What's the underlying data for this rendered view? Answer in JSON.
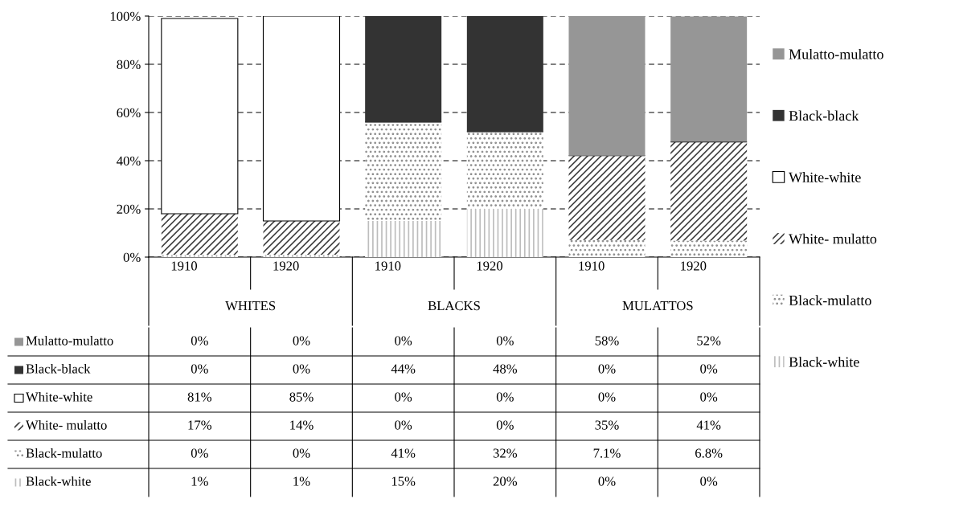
{
  "chart_data": {
    "type": "bar",
    "stacked": true,
    "categories": [
      "1910",
      "1920",
      "1910",
      "1920",
      "1910",
      "1920"
    ],
    "annotations": [
      "WHITES",
      "BLACKS",
      "MULATTOS"
    ],
    "series": [
      {
        "name": "Black-white",
        "color": "#bdbdbd",
        "values": [
          1,
          1,
          15,
          20,
          0,
          0
        ],
        "value_labels": [
          "1%",
          "1%",
          "15%",
          "20%",
          "0%",
          "0%"
        ]
      },
      {
        "name": "Black-mulatto",
        "color": "#8c8c8c",
        "values": [
          0,
          0,
          41,
          32,
          7.1,
          6.8
        ],
        "value_labels": [
          "0%",
          "0%",
          "41%",
          "32%",
          "7.1%",
          "6.8%"
        ]
      },
      {
        "name": "White- mulatto",
        "color": "#404040",
        "values": [
          17,
          14,
          0,
          0,
          35,
          41
        ],
        "value_labels": [
          "17%",
          "14%",
          "0%",
          "0%",
          "35%",
          "41%"
        ]
      },
      {
        "name": "White-white",
        "color": "#ffffff",
        "values": [
          81,
          85,
          0,
          0,
          0,
          0
        ],
        "value_labels": [
          "81%",
          "85%",
          "0%",
          "0%",
          "0%",
          "0%"
        ]
      },
      {
        "name": "Black-black",
        "color": "#333333",
        "values": [
          0,
          0,
          44,
          48,
          0,
          0
        ],
        "value_labels": [
          "0%",
          "0%",
          "44%",
          "48%",
          "0%",
          "0%"
        ]
      },
      {
        "name": "Mulatto-mulatto",
        "color": "#969696",
        "values": [
          0,
          0,
          0,
          0,
          58,
          52
        ],
        "value_labels": [
          "0%",
          "0%",
          "0%",
          "0%",
          "58%",
          "52%"
        ]
      }
    ],
    "ylim": [
      0,
      100
    ],
    "yticks": [
      {
        "value": 0,
        "label": "0%"
      },
      {
        "value": 20,
        "label": "20%"
      },
      {
        "value": 40,
        "label": "40%"
      },
      {
        "value": 60,
        "label": "60%"
      },
      {
        "value": 80,
        "label": "80%"
      },
      {
        "value": 100,
        "label": "100%"
      }
    ],
    "grid": "y",
    "legend": "right"
  }
}
